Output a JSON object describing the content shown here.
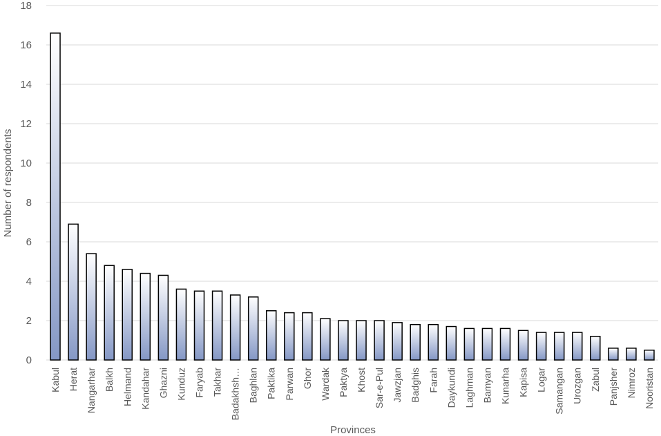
{
  "chart_data": {
    "type": "bar",
    "title": "",
    "xlabel": "Provinces",
    "ylabel": "Number of respondents",
    "ylim": [
      0,
      18
    ],
    "yticks": [
      0,
      2,
      4,
      6,
      8,
      10,
      12,
      14,
      16,
      18
    ],
    "grid": true,
    "legend": "none",
    "categories": [
      "Kabul",
      "Herat",
      "Nangarhar",
      "Balkh",
      "Helmand",
      "Kandahar",
      "Ghazni",
      "Kunduz",
      "Faryab",
      "Takhar",
      "Badakhsh…",
      "Baghlan",
      "Paktika",
      "Parwan",
      "Ghor",
      "Wardak",
      "Paktya",
      "Khost",
      "Sar-e-Pul",
      "Jawzjan",
      "Badghis",
      "Farah",
      "Daykundi",
      "Laghman",
      "Bamyan",
      "Kunarha",
      "Kapisa",
      "Logar",
      "Samangan",
      "Urozgan",
      "Zabul",
      "Panjsher",
      "Nimroz",
      "Nooristan"
    ],
    "values": [
      16.6,
      6.9,
      5.4,
      4.8,
      4.6,
      4.4,
      4.3,
      3.6,
      3.5,
      3.5,
      3.3,
      3.2,
      2.5,
      2.4,
      2.4,
      2.1,
      2.0,
      2.0,
      2.0,
      1.9,
      1.8,
      1.8,
      1.7,
      1.6,
      1.6,
      1.6,
      1.5,
      1.4,
      1.4,
      1.4,
      1.2,
      0.6,
      0.6,
      0.5
    ],
    "colors": {
      "bar_top": "#ffffff",
      "bar_bottom": "#8497c5",
      "bar_stroke": "#000000",
      "grid": "#d9d9d9",
      "text": "#595959"
    }
  }
}
